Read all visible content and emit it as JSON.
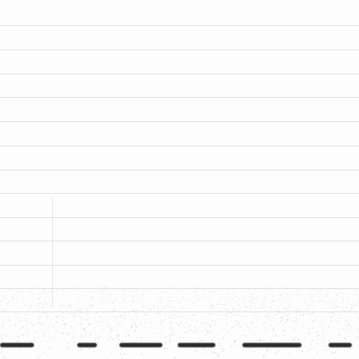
{
  "image": {
    "background_color": "#fdfdfd",
    "gridline_color": "#e4e4e4",
    "noise_color": "#8a8a8a",
    "mark_color": "#2c2c2c"
  }
}
